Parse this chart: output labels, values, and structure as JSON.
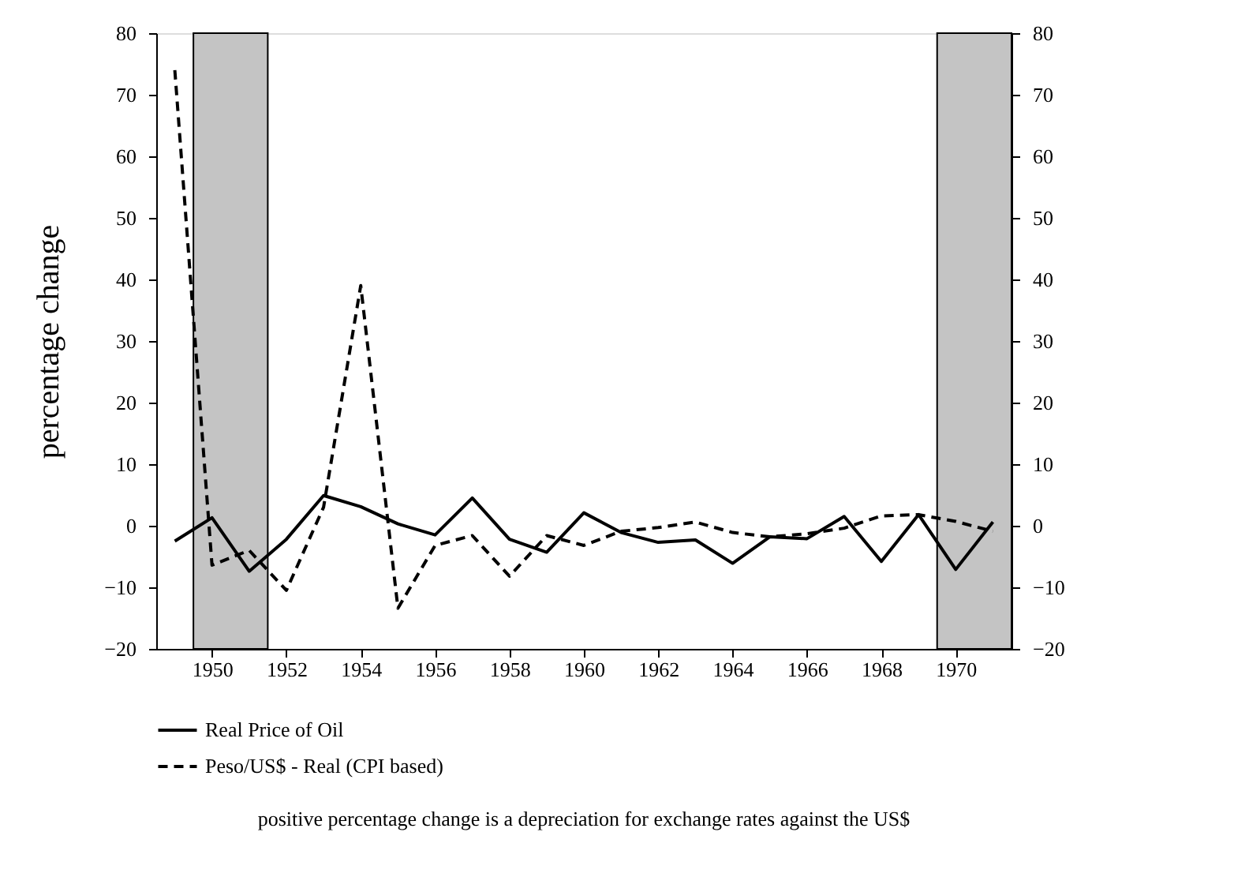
{
  "chart_data": {
    "type": "line",
    "ylabel": "percentage change",
    "x": [
      1949,
      1950,
      1951,
      1952,
      1953,
      1954,
      1955,
      1956,
      1957,
      1958,
      1959,
      1960,
      1961,
      1962,
      1963,
      1964,
      1965,
      1966,
      1967,
      1968,
      1969,
      1970,
      1971
    ],
    "series": [
      {
        "name": "Real Price of Oil",
        "color": "#000000",
        "line_style": "solid",
        "values": [
          -2.5,
          1.3,
          -7.4,
          -2.2,
          4.9,
          3.1,
          0.3,
          -1.5,
          4.5,
          -2.2,
          -4.3,
          2.1,
          -1.1,
          -2.7,
          -2.3,
          -6.1,
          -1.8,
          -2.1,
          1.5,
          -5.8,
          1.8,
          -7.1,
          0.6
        ]
      },
      {
        "name": "Peso/US$ - Real (CPI based)",
        "color": "#000000",
        "line_style": "dashed",
        "values": [
          74,
          -6.4,
          -4.0,
          -10.5,
          3,
          39,
          -13.4,
          -3.2,
          -1.6,
          -8.2,
          -1.6,
          -3.2,
          -0.9,
          -0.3,
          0.6,
          -1.1,
          -1.8,
          -1.3,
          -0.4,
          1.6,
          1.8,
          0.7,
          -0.9
        ]
      }
    ],
    "xlim": [
      1948.5,
      1971.5
    ],
    "xticks": [
      1950,
      1952,
      1954,
      1956,
      1958,
      1960,
      1962,
      1964,
      1966,
      1968,
      1970
    ],
    "ylim": [
      -20,
      80
    ],
    "yticks": [
      -20,
      -10,
      0,
      10,
      20,
      30,
      40,
      50,
      60,
      70,
      80
    ],
    "y2lim": [
      -20,
      80
    ],
    "y2ticks": [
      -20,
      -10,
      0,
      10,
      20,
      30,
      40,
      50,
      60,
      70,
      80
    ],
    "bands": [
      {
        "axis": "x",
        "from": 1949.5,
        "to": 1951.5,
        "color": "#c4c4c4"
      },
      {
        "axis": "x",
        "from": 1969.5,
        "to": 1971.5,
        "color": "#c4c4c4"
      }
    ],
    "legend": "bottom",
    "grid": false,
    "annotations": [
      "positive percentage change is a depreciation for exchange rates against the US$"
    ]
  }
}
